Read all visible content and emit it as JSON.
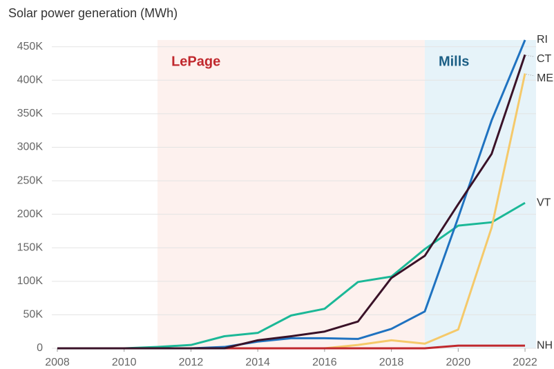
{
  "chart_data": {
    "type": "line",
    "title": "Solar power generation (MWh)",
    "x": [
      2008,
      2009,
      2010,
      2011,
      2012,
      2013,
      2014,
      2015,
      2016,
      2017,
      2018,
      2019,
      2020,
      2021,
      2022
    ],
    "series": [
      {
        "name": "VT",
        "color": "#1bb897",
        "values": [
          0,
          0,
          0,
          2000,
          5000,
          18000,
          23000,
          49000,
          59000,
          99000,
          107000,
          148000,
          183000,
          188000,
          217000
        ]
      },
      {
        "name": "ME",
        "color": "#f5c96a",
        "values": [
          0,
          0,
          0,
          0,
          0,
          0,
          0,
          0,
          0,
          5000,
          12000,
          7000,
          28000,
          180000,
          410000
        ]
      },
      {
        "name": "NH",
        "color": "#c0282d",
        "values": [
          0,
          0,
          0,
          0,
          0,
          0,
          0,
          0,
          0,
          0,
          0,
          0,
          4000,
          4000,
          4000
        ]
      },
      {
        "name": "RI",
        "color": "#1f72c0",
        "values": [
          0,
          0,
          0,
          0,
          0,
          2000,
          10000,
          15000,
          15000,
          14000,
          29000,
          55000,
          195000,
          340000,
          460000
        ]
      },
      {
        "name": "CT",
        "color": "#3a1228",
        "values": [
          0,
          0,
          0,
          0,
          0,
          0,
          12000,
          18000,
          25000,
          40000,
          105000,
          138000,
          215000,
          290000,
          438000
        ]
      }
    ],
    "spans": [
      {
        "label": "LePage",
        "start": 2011,
        "end": 2019,
        "color": "#fdf1ee",
        "label_color": "#c0282d"
      },
      {
        "label": "Mills",
        "start": 2019,
        "end": 2022.33,
        "color": "#e6f3f9",
        "label_color": "#1c5f85"
      }
    ],
    "xlim": [
      2008,
      2022.33
    ],
    "xticks": [
      2008,
      2010,
      2012,
      2014,
      2016,
      2018,
      2020,
      2022
    ],
    "ylim": [
      0,
      460000
    ],
    "yticks": [
      0,
      {
        "value": 50000,
        "label": "50K"
      },
      {
        "value": 100000,
        "label": "100K"
      },
      {
        "value": 150000,
        "label": "150K"
      },
      {
        "value": 200000,
        "label": "200K"
      },
      {
        "value": 250000,
        "label": "250K"
      },
      {
        "value": 300000,
        "label": "300K"
      },
      {
        "value": 350000,
        "label": "350K"
      },
      {
        "value": 400000,
        "label": "400K"
      },
      {
        "value": 450000,
        "label": "450K"
      }
    ],
    "grid": true
  }
}
